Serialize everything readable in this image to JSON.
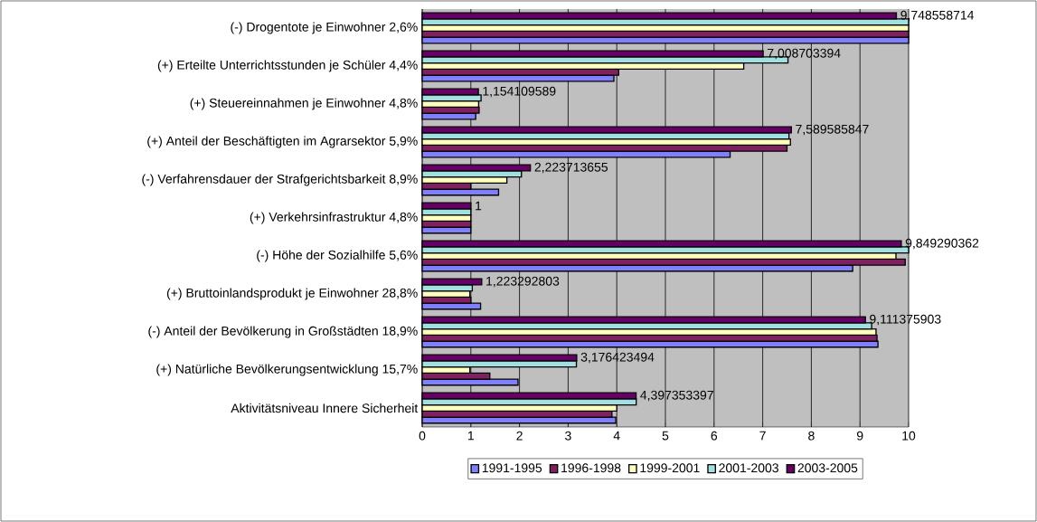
{
  "chart_data": {
    "type": "bar",
    "orientation": "horizontal",
    "categories": [
      "(-) Drogentote je Einwohner 2,6%",
      "(+) Erteilte Unterrichtsstunden je Schüler 4,4%",
      "(+) Steuereinnahmen je Einwohner 4,8%",
      "(+) Anteil der Beschäftigten im Agrarsektor 5,9%",
      "(-) Verfahrensdauer der Strafgerichtsbarkeit 8,9%",
      "(+) Verkehrsinfrastruktur 4,8%",
      "(-) Höhe der Sozialhilfe 5,6%",
      "(+) Bruttoinlandsprodukt je Einwohner 28,8%",
      "(-) Anteil der Bevölkerung in Großstädten 18,9%",
      "(+) Natürliche Bevölkerungsentwicklung 15,7%",
      "Aktivitätsniveau Innere Sicherheit"
    ],
    "series": [
      {
        "name": "1991-1995",
        "color": "#8080ff",
        "values": [
          10,
          3.94,
          1.1,
          6.33,
          1.57,
          1,
          8.85,
          1.2,
          9.37,
          1.97,
          3.98
        ]
      },
      {
        "name": "1996-1998",
        "color": "#802060",
        "values": [
          10,
          4.04,
          1.17,
          7.5,
          1,
          1,
          9.93,
          1,
          9.35,
          1.39,
          3.9
        ]
      },
      {
        "name": "1999-2001",
        "color": "#ffffc0",
        "values": [
          10,
          6.61,
          1.16,
          7.57,
          1.74,
          1,
          9.74,
          0.98,
          9.33,
          0.98,
          4.0
        ]
      },
      {
        "name": "2001-2003",
        "color": "#a0e0e0",
        "values": [
          10,
          7.52,
          1.21,
          7.54,
          2.04,
          1,
          10,
          1.03,
          9.24,
          3.17,
          4.4
        ]
      },
      {
        "name": "2003-2005",
        "color": "#660066",
        "values": [
          9.748558714,
          7.008703394,
          1.154109589,
          7.589585847,
          2.223713655,
          1,
          9.849290362,
          1.223292803,
          9.111375903,
          3.176423494,
          4.397353397
        ],
        "value_labels": [
          "9,748558714",
          "7,008703394",
          "1,154109589",
          "7,589585847",
          "2,223713655",
          "1",
          "9,849290362",
          "1,223292803",
          "9,111375903",
          "3,176423494",
          "4,397353397"
        ]
      }
    ],
    "xlim": [
      0,
      10
    ],
    "xticks": [
      0,
      1,
      2,
      3,
      4,
      5,
      6,
      7,
      8,
      9,
      10
    ],
    "grid": "x",
    "legend": "bottom"
  }
}
